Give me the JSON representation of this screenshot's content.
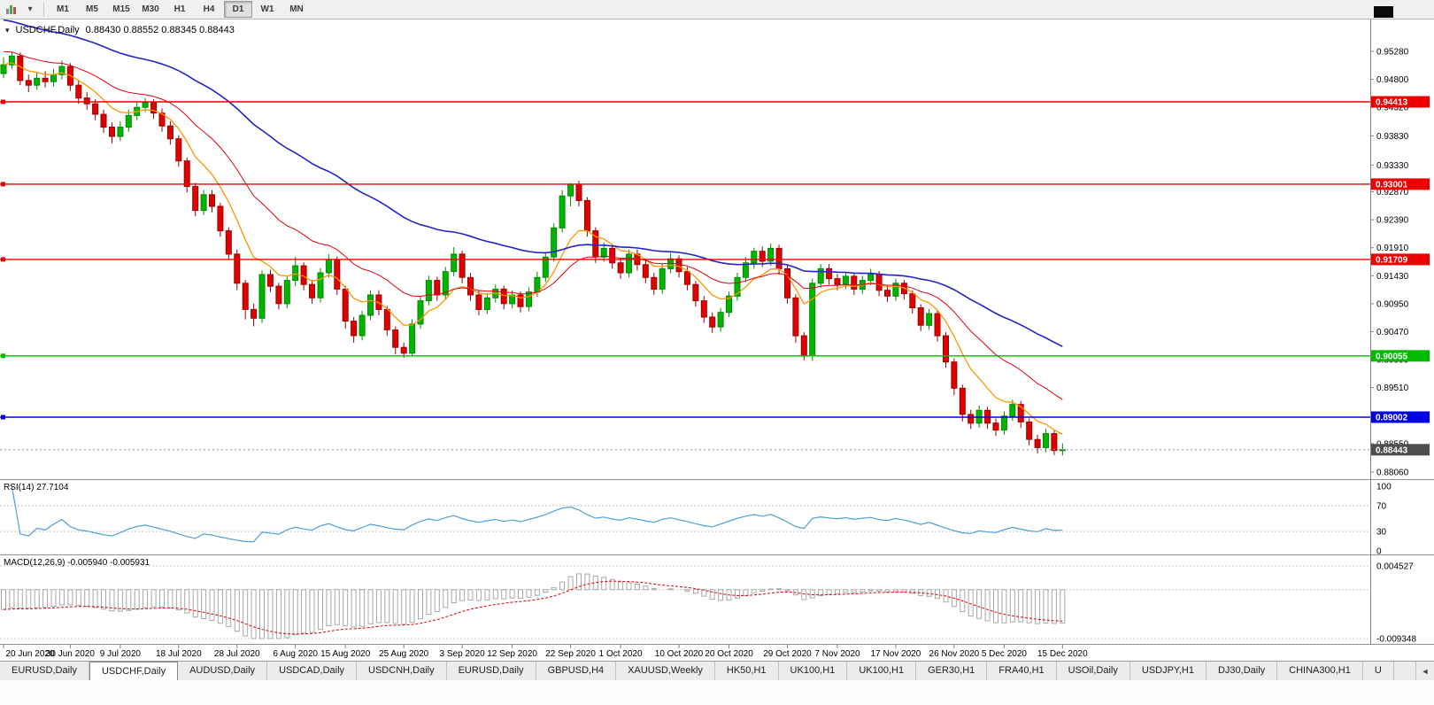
{
  "icons": {
    "dropdown": "▾",
    "title_dropdown": "▾",
    "tab_scroll_left": "◄"
  },
  "toolbar": {
    "timeframes": [
      "M1",
      "M5",
      "M15",
      "M30",
      "H1",
      "H4",
      "D1",
      "W1",
      "MN"
    ],
    "active_timeframe": "D1"
  },
  "chart": {
    "symbol_title": "USDCHF,Daily",
    "ohlc_text": "0.88430 0.88552 0.88345 0.88443",
    "open": "0.88430",
    "high": "0.88552",
    "low": "0.88345",
    "close": "0.88443",
    "last_price_label": "0.88443",
    "price_ticks": [
      "0.95280",
      "0.94800",
      "0.94320",
      "0.93830",
      "0.93330",
      "0.92870",
      "0.92390",
      "0.91910",
      "0.91430",
      "0.90950",
      "0.90470",
      "0.89990",
      "0.89510",
      "0.89030",
      "0.88550",
      "0.88060"
    ],
    "hlines": [
      {
        "value": 0.94413,
        "label": "0.94413",
        "color": "#ee0000"
      },
      {
        "value": 0.93001,
        "label": "0.93001",
        "color": "#ee0000"
      },
      {
        "value": 0.91709,
        "label": "0.91709",
        "color": "#ee0000"
      },
      {
        "value": 0.90055,
        "label": "0.90055",
        "color": "#00bb00"
      },
      {
        "value": 0.89002,
        "label": "0.89002",
        "color": "#0000e8"
      }
    ]
  },
  "rsi_panel": {
    "label": "RSI(14) 27.7104",
    "period": 14,
    "value": "27.7104",
    "levels": [
      100,
      70,
      30,
      0
    ],
    "line_color": "#4f9fd9"
  },
  "macd_panel": {
    "label": "MACD(12,26,9) -0.005940 -0.005931",
    "values": "-0.005940 -0.005931",
    "axis_max_label": "0.004527",
    "axis_min_label": "-0.009348"
  },
  "tabs": [
    {
      "label": "EURUSD,Daily",
      "active": false
    },
    {
      "label": "USDCHF,Daily",
      "active": true
    },
    {
      "label": "AUDUSD,Daily",
      "active": false
    },
    {
      "label": "USDCAD,Daily",
      "active": false
    },
    {
      "label": "USDCNH,Daily",
      "active": false
    },
    {
      "label": "EURUSD,Daily",
      "active": false
    },
    {
      "label": "GBPUSD,H4",
      "active": false
    },
    {
      "label": "XAUUSD,Weekly",
      "active": false
    },
    {
      "label": "HK50,H1",
      "active": false
    },
    {
      "label": "UK100,H1",
      "active": false
    },
    {
      "label": "UK100,H1",
      "active": false
    },
    {
      "label": "GER30,H1",
      "active": false
    },
    {
      "label": "FRA40,H1",
      "active": false
    },
    {
      "label": "USOil,Daily",
      "active": false
    },
    {
      "label": "USDJPY,H1",
      "active": false
    },
    {
      "label": "DJ30,Daily",
      "active": false
    },
    {
      "label": "CHINA300,H1",
      "active": false
    },
    {
      "label": "U",
      "active": false
    }
  ],
  "chart_data": {
    "type": "candlestick",
    "symbol": "USDCHF",
    "timeframe": "Daily",
    "title": "USDCHF,Daily 0.88430 0.88552 0.88345 0.88443",
    "y_range": [
      0.8795,
      0.9548
    ],
    "last_ohlc": {
      "open": 0.8843,
      "high": 0.88552,
      "low": 0.88345,
      "close": 0.88443
    },
    "last_price": 0.88443,
    "date_ticks": [
      {
        "label": "20 Jun 2020",
        "i": 0
      },
      {
        "label": "30 Jun 2020",
        "i": 8
      },
      {
        "label": "9 Jul 2020",
        "i": 14
      },
      {
        "label": "18 Jul 2020",
        "i": 21
      },
      {
        "label": "28 Jul 2020",
        "i": 28
      },
      {
        "label": "6 Aug 2020",
        "i": 35
      },
      {
        "label": "15 Aug 2020",
        "i": 41
      },
      {
        "label": "25 Aug 2020",
        "i": 48
      },
      {
        "label": "3 Sep 2020",
        "i": 55
      },
      {
        "label": "12 Sep 2020",
        "i": 61
      },
      {
        "label": "22 Sep 2020",
        "i": 68
      },
      {
        "label": "1 Oct 2020",
        "i": 74
      },
      {
        "label": "10 Oct 2020",
        "i": 81
      },
      {
        "label": "20 Oct 2020",
        "i": 87
      },
      {
        "label": "29 Oct 2020",
        "i": 94
      },
      {
        "label": "7 Nov 2020",
        "i": 100
      },
      {
        "label": "17 Nov 2020",
        "i": 107
      },
      {
        "label": "26 Nov 2020",
        "i": 114
      },
      {
        "label": "5 Dec 2020",
        "i": 120
      },
      {
        "label": "15 Dec 2020",
        "i": 127
      }
    ],
    "overlays": [
      {
        "name": "ema-fast-orange",
        "period": 8,
        "seed": 0.9505,
        "color": "#ff9500",
        "width": 1.3
      },
      {
        "name": "ema-medium-red",
        "period": 20,
        "seed": 0.953,
        "color": "#e00010",
        "width": 1
      },
      {
        "name": "ema-slow-blue",
        "period": 50,
        "seed": 0.9585,
        "color": "#2224c8",
        "width": 1.6
      }
    ],
    "rsi": {
      "period": 14,
      "value": 27.7104,
      "levels": [
        100,
        70,
        30,
        0
      ],
      "color": "#4f9fd9"
    },
    "macd": {
      "fast": 12,
      "slow": 26,
      "signal": 9,
      "seed_fast": 0.9515,
      "seed_slow": 0.9555,
      "axis_max": 0.004527,
      "axis_min": -0.009348,
      "last_macd": -0.00594,
      "last_signal": -0.005931,
      "hist_color": "#a8a8a8",
      "signal_color": "#e00000"
    },
    "candles": [
      [
        0.949,
        0.9518,
        0.9482,
        0.9505
      ],
      [
        0.9505,
        0.9528,
        0.9498,
        0.952
      ],
      [
        0.952,
        0.9526,
        0.947,
        0.9478
      ],
      [
        0.9478,
        0.9488,
        0.9458,
        0.947
      ],
      [
        0.947,
        0.9492,
        0.9462,
        0.9482
      ],
      [
        0.9482,
        0.9494,
        0.9466,
        0.9476
      ],
      [
        0.9476,
        0.9498,
        0.9468,
        0.9488
      ],
      [
        0.9488,
        0.9512,
        0.948,
        0.9502
      ],
      [
        0.9502,
        0.9508,
        0.946,
        0.947
      ],
      [
        0.947,
        0.9478,
        0.9438,
        0.9448
      ],
      [
        0.9448,
        0.9458,
        0.9428,
        0.9438
      ],
      [
        0.9438,
        0.9446,
        0.941,
        0.942
      ],
      [
        0.942,
        0.9428,
        0.9388,
        0.9398
      ],
      [
        0.9398,
        0.9406,
        0.937,
        0.9382
      ],
      [
        0.9382,
        0.9408,
        0.9374,
        0.9398
      ],
      [
        0.9398,
        0.9428,
        0.939,
        0.9418
      ],
      [
        0.9418,
        0.9442,
        0.941,
        0.9432
      ],
      [
        0.9432,
        0.9448,
        0.9424,
        0.944
      ],
      [
        0.944,
        0.9446,
        0.9412,
        0.9422
      ],
      [
        0.9422,
        0.943,
        0.939,
        0.94
      ],
      [
        0.94,
        0.9408,
        0.9368,
        0.9378
      ],
      [
        0.9378,
        0.9384,
        0.933,
        0.934
      ],
      [
        0.934,
        0.9346,
        0.9286,
        0.9296
      ],
      [
        0.9296,
        0.9302,
        0.9245,
        0.9255
      ],
      [
        0.9255,
        0.929,
        0.9247,
        0.9282
      ],
      [
        0.9282,
        0.929,
        0.9252,
        0.9262
      ],
      [
        0.9262,
        0.9268,
        0.921,
        0.922
      ],
      [
        0.922,
        0.9226,
        0.917,
        0.918
      ],
      [
        0.918,
        0.9188,
        0.9118,
        0.913
      ],
      [
        0.913,
        0.9136,
        0.9068,
        0.9085
      ],
      [
        0.9085,
        0.9095,
        0.9056,
        0.907
      ],
      [
        0.907,
        0.9152,
        0.9062,
        0.9145
      ],
      [
        0.9145,
        0.9153,
        0.9115,
        0.9125
      ],
      [
        0.9125,
        0.9131,
        0.9085,
        0.9095
      ],
      [
        0.9095,
        0.9143,
        0.9087,
        0.9135
      ],
      [
        0.9135,
        0.9175,
        0.9125,
        0.916
      ],
      [
        0.916,
        0.9166,
        0.9118,
        0.9128
      ],
      [
        0.9128,
        0.9136,
        0.9095,
        0.9105
      ],
      [
        0.9105,
        0.9156,
        0.9097,
        0.9148
      ],
      [
        0.9148,
        0.918,
        0.914,
        0.917
      ],
      [
        0.917,
        0.9176,
        0.911,
        0.912
      ],
      [
        0.912,
        0.9126,
        0.9052,
        0.9065
      ],
      [
        0.9065,
        0.9072,
        0.9028,
        0.904
      ],
      [
        0.904,
        0.9083,
        0.9032,
        0.9075
      ],
      [
        0.9075,
        0.9118,
        0.9067,
        0.911
      ],
      [
        0.911,
        0.9118,
        0.9075,
        0.9085
      ],
      [
        0.9085,
        0.9091,
        0.904,
        0.905
      ],
      [
        0.905,
        0.9056,
        0.9008,
        0.902
      ],
      [
        0.902,
        0.9028,
        0.9002,
        0.901
      ],
      [
        0.901,
        0.9068,
        0.9004,
        0.906
      ],
      [
        0.906,
        0.9108,
        0.9052,
        0.91
      ],
      [
        0.91,
        0.9143,
        0.9092,
        0.9135
      ],
      [
        0.9135,
        0.9141,
        0.91,
        0.911
      ],
      [
        0.911,
        0.9158,
        0.9102,
        0.915
      ],
      [
        0.915,
        0.9192,
        0.9142,
        0.918
      ],
      [
        0.918,
        0.9186,
        0.913,
        0.914
      ],
      [
        0.914,
        0.9148,
        0.91,
        0.911
      ],
      [
        0.911,
        0.9118,
        0.9075,
        0.9085
      ],
      [
        0.9085,
        0.9113,
        0.9077,
        0.9105
      ],
      [
        0.9105,
        0.9128,
        0.9097,
        0.912
      ],
      [
        0.912,
        0.9126,
        0.9085,
        0.9095
      ],
      [
        0.9095,
        0.9118,
        0.9087,
        0.911
      ],
      [
        0.911,
        0.9116,
        0.908,
        0.909
      ],
      [
        0.909,
        0.9123,
        0.9082,
        0.9115
      ],
      [
        0.9115,
        0.915,
        0.9107,
        0.914
      ],
      [
        0.914,
        0.9183,
        0.9132,
        0.9175
      ],
      [
        0.9175,
        0.9233,
        0.9167,
        0.9225
      ],
      [
        0.9225,
        0.929,
        0.9217,
        0.928
      ],
      [
        0.928,
        0.9302,
        0.9262,
        0.93
      ],
      [
        0.93,
        0.9306,
        0.9262,
        0.9272
      ],
      [
        0.9272,
        0.9278,
        0.921,
        0.922
      ],
      [
        0.922,
        0.9226,
        0.9165,
        0.9175
      ],
      [
        0.9175,
        0.92,
        0.9167,
        0.919
      ],
      [
        0.919,
        0.9196,
        0.9155,
        0.9165
      ],
      [
        0.9165,
        0.9173,
        0.9138,
        0.9148
      ],
      [
        0.9148,
        0.9188,
        0.914,
        0.918
      ],
      [
        0.918,
        0.9188,
        0.9152,
        0.9162
      ],
      [
        0.9162,
        0.917,
        0.913,
        0.914
      ],
      [
        0.914,
        0.9148,
        0.911,
        0.912
      ],
      [
        0.912,
        0.9163,
        0.9112,
        0.9155
      ],
      [
        0.9155,
        0.9182,
        0.9147,
        0.9172
      ],
      [
        0.9172,
        0.9178,
        0.914,
        0.915
      ],
      [
        0.915,
        0.9158,
        0.9118,
        0.9128
      ],
      [
        0.9128,
        0.9134,
        0.909,
        0.91
      ],
      [
        0.91,
        0.9108,
        0.9062,
        0.9072
      ],
      [
        0.9072,
        0.908,
        0.9045,
        0.9055
      ],
      [
        0.9055,
        0.9088,
        0.9047,
        0.908
      ],
      [
        0.908,
        0.9116,
        0.9072,
        0.9108
      ],
      [
        0.9108,
        0.9148,
        0.91,
        0.914
      ],
      [
        0.914,
        0.9175,
        0.9132,
        0.9165
      ],
      [
        0.9165,
        0.9191,
        0.9155,
        0.9185
      ],
      [
        0.9185,
        0.9193,
        0.9158,
        0.9168
      ],
      [
        0.9168,
        0.9198,
        0.916,
        0.919
      ],
      [
        0.919,
        0.9196,
        0.9145,
        0.9155
      ],
      [
        0.9155,
        0.9161,
        0.9095,
        0.9105
      ],
      [
        0.9105,
        0.9111,
        0.9028,
        0.904
      ],
      [
        0.904,
        0.9046,
        0.8998,
        0.9005
      ],
      [
        0.9005,
        0.9138,
        0.8997,
        0.913
      ],
      [
        0.913,
        0.9163,
        0.9122,
        0.9155
      ],
      [
        0.9155,
        0.9163,
        0.9128,
        0.9138
      ],
      [
        0.9138,
        0.9146,
        0.9118,
        0.9128
      ],
      [
        0.9128,
        0.915,
        0.912,
        0.9142
      ],
      [
        0.9142,
        0.9148,
        0.911,
        0.912
      ],
      [
        0.912,
        0.9143,
        0.9112,
        0.9135
      ],
      [
        0.9135,
        0.9155,
        0.9127,
        0.9145
      ],
      [
        0.9145,
        0.9151,
        0.9108,
        0.9118
      ],
      [
        0.9118,
        0.9126,
        0.9098,
        0.9108
      ],
      [
        0.9108,
        0.9138,
        0.91,
        0.913
      ],
      [
        0.913,
        0.9136,
        0.9102,
        0.9112
      ],
      [
        0.9112,
        0.9118,
        0.9078,
        0.9088
      ],
      [
        0.9088,
        0.9094,
        0.9048,
        0.9058
      ],
      [
        0.9058,
        0.9086,
        0.905,
        0.9078
      ],
      [
        0.9078,
        0.9084,
        0.903,
        0.904
      ],
      [
        0.904,
        0.9046,
        0.8985,
        0.8995
      ],
      [
        0.8995,
        0.9001,
        0.8938,
        0.895
      ],
      [
        0.895,
        0.8956,
        0.8893,
        0.8905
      ],
      [
        0.8905,
        0.8913,
        0.888,
        0.889
      ],
      [
        0.889,
        0.892,
        0.8882,
        0.8912
      ],
      [
        0.8912,
        0.8918,
        0.888,
        0.889
      ],
      [
        0.889,
        0.8898,
        0.8868,
        0.8878
      ],
      [
        0.8878,
        0.891,
        0.887,
        0.8902
      ],
      [
        0.8902,
        0.893,
        0.8894,
        0.8922
      ],
      [
        0.8922,
        0.8928,
        0.8882,
        0.8892
      ],
      [
        0.8892,
        0.8898,
        0.8852,
        0.8862
      ],
      [
        0.8862,
        0.887,
        0.8838,
        0.8848
      ],
      [
        0.8848,
        0.888,
        0.884,
        0.8872
      ],
      [
        0.8872,
        0.8878,
        0.8835,
        0.8843
      ],
      [
        0.8843,
        0.88552,
        0.88345,
        0.88443
      ]
    ]
  }
}
